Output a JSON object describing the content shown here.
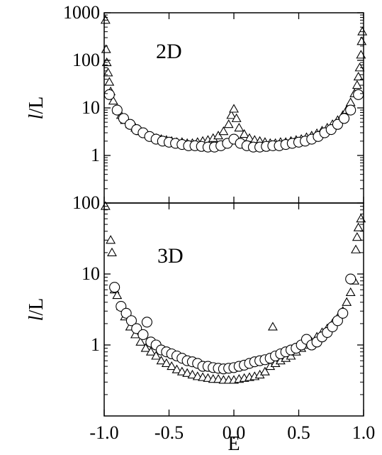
{
  "chart_data": [
    {
      "type": "scatter",
      "panel_label": "2D",
      "ylabel_italic": "l",
      "ylabel_rest": "/L",
      "yscale": "log",
      "xlim": [
        -1.0,
        1.0
      ],
      "ylim": [
        0.1,
        1000
      ],
      "ytick_values": [
        1,
        10,
        100,
        1000
      ],
      "ytick_labels": [
        "1",
        "10",
        "100",
        "1000"
      ],
      "series": [
        {
          "marker": "triangle",
          "x": [
            -0.99,
            -0.985,
            -0.98,
            -0.97,
            -0.96,
            -0.95,
            -0.93,
            -0.9,
            -0.87,
            -0.84,
            -0.8,
            -0.76,
            -0.72,
            -0.68,
            -0.64,
            -0.6,
            -0.56,
            -0.52,
            -0.48,
            -0.44,
            -0.4,
            -0.36,
            -0.32,
            -0.28,
            -0.24,
            -0.2,
            -0.16,
            -0.12,
            -0.08,
            -0.04,
            -0.02,
            0.0,
            0.02,
            0.04,
            0.08,
            0.12,
            0.16,
            0.2,
            0.24,
            0.28,
            0.32,
            0.36,
            0.4,
            0.44,
            0.48,
            0.52,
            0.56,
            0.6,
            0.64,
            0.68,
            0.72,
            0.76,
            0.8,
            0.84,
            0.87,
            0.9,
            0.93,
            0.95,
            0.96,
            0.97,
            0.98,
            0.985,
            0.99
          ],
          "y": [
            700,
            170,
            90,
            55,
            35,
            22,
            14,
            9,
            7,
            5.5,
            4.5,
            3.8,
            3.2,
            2.8,
            2.5,
            2.3,
            2.2,
            2.1,
            2.0,
            1.9,
            1.9,
            1.8,
            1.8,
            1.9,
            2.0,
            2.1,
            2.3,
            2.6,
            3.2,
            4.5,
            7,
            9.5,
            6,
            3.8,
            2.8,
            2.3,
            2.1,
            2.0,
            1.9,
            1.8,
            1.8,
            1.9,
            1.9,
            2.0,
            2.1,
            2.2,
            2.4,
            2.6,
            2.9,
            3.3,
            3.8,
            4.5,
            5.5,
            7,
            9,
            13,
            20,
            30,
            45,
            70,
            130,
            250,
            400
          ]
        },
        {
          "marker": "circle",
          "x": [
            -0.96,
            -0.9,
            -0.85,
            -0.8,
            -0.75,
            -0.7,
            -0.65,
            -0.6,
            -0.55,
            -0.5,
            -0.45,
            -0.4,
            -0.35,
            -0.3,
            -0.25,
            -0.2,
            -0.15,
            -0.1,
            -0.05,
            0.0,
            0.05,
            0.1,
            0.15,
            0.2,
            0.25,
            0.3,
            0.35,
            0.4,
            0.45,
            0.5,
            0.55,
            0.6,
            0.65,
            0.7,
            0.75,
            0.8,
            0.85,
            0.9,
            0.96
          ],
          "y": [
            19,
            9,
            6,
            4.5,
            3.5,
            3.0,
            2.5,
            2.2,
            2.0,
            1.9,
            1.8,
            1.7,
            1.6,
            1.6,
            1.55,
            1.5,
            1.5,
            1.6,
            1.8,
            2.2,
            1.8,
            1.6,
            1.5,
            1.5,
            1.55,
            1.6,
            1.6,
            1.7,
            1.8,
            1.9,
            2.0,
            2.2,
            2.5,
            3.0,
            3.5,
            4.5,
            6,
            9,
            19
          ]
        }
      ]
    },
    {
      "type": "scatter",
      "panel_label": "3D",
      "ylabel_italic": "l",
      "ylabel_rest": "/L",
      "xlabel": "E",
      "yscale": "log",
      "xlim": [
        -1.0,
        1.0
      ],
      "ylim": [
        0.1,
        100
      ],
      "ytick_values": [
        1,
        10,
        100
      ],
      "ytick_labels": [
        "1",
        "10",
        "100"
      ],
      "xtick_values": [
        -1.0,
        -0.5,
        0.0,
        0.5,
        1.0
      ],
      "xtick_labels": [
        "-1.0",
        "-0.5",
        "0.0",
        "0.5",
        "1.0"
      ],
      "series": [
        {
          "marker": "triangle",
          "x": [
            -0.99,
            -0.95,
            -0.94,
            -0.92,
            -0.9,
            -0.87,
            -0.84,
            -0.8,
            -0.76,
            -0.72,
            -0.68,
            -0.64,
            -0.6,
            -0.56,
            -0.52,
            -0.48,
            -0.44,
            -0.4,
            -0.36,
            -0.32,
            -0.28,
            -0.24,
            -0.2,
            -0.16,
            -0.12,
            -0.08,
            -0.04,
            0.0,
            0.04,
            0.08,
            0.12,
            0.16,
            0.2,
            0.24,
            0.28,
            0.3,
            0.32,
            0.36,
            0.4,
            0.44,
            0.48,
            0.52,
            0.56,
            0.6,
            0.64,
            0.68,
            0.72,
            0.76,
            0.8,
            0.84,
            0.87,
            0.9,
            0.93,
            0.94,
            0.95,
            0.96,
            0.98
          ],
          "y": [
            90,
            30,
            20,
            6,
            5,
            3.5,
            2.5,
            1.8,
            1.4,
            1.1,
            0.9,
            0.8,
            0.7,
            0.6,
            0.55,
            0.5,
            0.45,
            0.42,
            0.4,
            0.38,
            0.36,
            0.35,
            0.34,
            0.33,
            0.33,
            0.32,
            0.32,
            0.32,
            0.33,
            0.34,
            0.35,
            0.36,
            0.38,
            0.42,
            0.5,
            1.8,
            0.55,
            0.6,
            0.65,
            0.7,
            0.8,
            0.9,
            1.0,
            1.1,
            1.3,
            1.5,
            1.7,
            2.0,
            2.4,
            3.0,
            4.0,
            5.5,
            8,
            22,
            33,
            45,
            60
          ]
        },
        {
          "marker": "circle",
          "x": [
            -0.92,
            -0.87,
            -0.83,
            -0.79,
            -0.75,
            -0.7,
            -0.67,
            -0.64,
            -0.6,
            -0.56,
            -0.52,
            -0.48,
            -0.44,
            -0.4,
            -0.36,
            -0.32,
            -0.28,
            -0.24,
            -0.2,
            -0.16,
            -0.12,
            -0.08,
            -0.04,
            0.0,
            0.04,
            0.08,
            0.12,
            0.16,
            0.2,
            0.24,
            0.28,
            0.32,
            0.36,
            0.4,
            0.44,
            0.48,
            0.52,
            0.56,
            0.6,
            0.64,
            0.68,
            0.72,
            0.76,
            0.8,
            0.84,
            0.9
          ],
          "y": [
            6.5,
            3.5,
            2.8,
            2.2,
            1.7,
            1.4,
            2.1,
            1.1,
            1.0,
            0.85,
            0.8,
            0.75,
            0.7,
            0.65,
            0.6,
            0.58,
            0.55,
            0.5,
            0.5,
            0.48,
            0.47,
            0.46,
            0.47,
            0.48,
            0.5,
            0.52,
            0.55,
            0.58,
            0.6,
            0.62,
            0.65,
            0.7,
            0.75,
            0.8,
            0.85,
            0.9,
            1.0,
            1.2,
            1.0,
            1.1,
            1.3,
            1.5,
            1.8,
            2.2,
            2.8,
            8.5
          ]
        }
      ]
    }
  ]
}
